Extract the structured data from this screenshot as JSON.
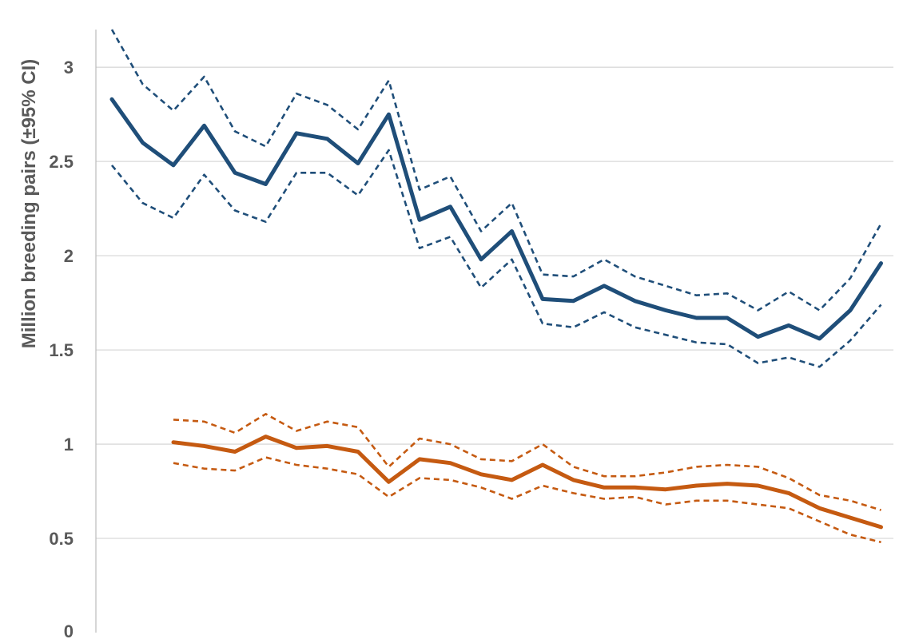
{
  "chart_data": {
    "type": "line",
    "ylabel": "Million breeding pairs (±95% CI)",
    "ylim": [
      0,
      3.2
    ],
    "yticks": [
      0,
      0.5,
      1,
      1.5,
      2,
      2.5,
      3
    ],
    "ytick_labels": [
      "0",
      "0.5",
      "1",
      "1.5",
      "2",
      "2.5",
      "3"
    ],
    "grid": true,
    "x": [
      1,
      2,
      3,
      4,
      5,
      6,
      7,
      8,
      9,
      10,
      11,
      12,
      13,
      14,
      15,
      16,
      17,
      18,
      19,
      20,
      21,
      22,
      23,
      24,
      25,
      26
    ],
    "colors": {
      "blue": "#1f4e79",
      "orange": "#c55a11"
    },
    "series": [
      {
        "color": "blue",
        "style": "solid",
        "values": [
          2.83,
          2.6,
          2.48,
          2.69,
          2.44,
          2.38,
          2.65,
          2.62,
          2.49,
          2.75,
          2.19,
          2.26,
          1.98,
          2.13,
          1.77,
          1.76,
          1.84,
          1.76,
          1.71,
          1.67,
          1.67,
          1.57,
          1.63,
          1.56,
          1.71,
          1.96
        ]
      },
      {
        "color": "blue",
        "style": "dashed",
        "values": [
          3.2,
          2.91,
          2.77,
          2.95,
          2.66,
          2.58,
          2.86,
          2.8,
          2.67,
          2.93,
          2.35,
          2.42,
          2.13,
          2.28,
          1.9,
          1.89,
          1.98,
          1.89,
          1.84,
          1.79,
          1.8,
          1.71,
          1.81,
          1.71,
          1.88,
          2.17
        ]
      },
      {
        "color": "blue",
        "style": "dashed",
        "values": [
          2.48,
          2.28,
          2.2,
          2.43,
          2.24,
          2.18,
          2.44,
          2.44,
          2.32,
          2.56,
          2.04,
          2.1,
          1.83,
          1.98,
          1.64,
          1.62,
          1.7,
          1.62,
          1.58,
          1.54,
          1.53,
          1.43,
          1.46,
          1.41,
          1.55,
          1.74
        ]
      },
      {
        "color": "orange",
        "style": "solid",
        "values": [
          null,
          null,
          1.01,
          0.99,
          0.96,
          1.04,
          0.98,
          0.99,
          0.96,
          0.8,
          0.92,
          0.9,
          0.84,
          0.81,
          0.89,
          0.81,
          0.77,
          0.77,
          0.76,
          0.78,
          0.79,
          0.78,
          0.74,
          0.66,
          0.61,
          0.56
        ]
      },
      {
        "color": "orange",
        "style": "dashed",
        "values": [
          null,
          null,
          1.13,
          1.12,
          1.06,
          1.16,
          1.07,
          1.12,
          1.09,
          0.88,
          1.03,
          1.0,
          0.92,
          0.91,
          1.0,
          0.88,
          0.83,
          0.83,
          0.85,
          0.88,
          0.89,
          0.88,
          0.82,
          0.73,
          0.7,
          0.65
        ]
      },
      {
        "color": "orange",
        "style": "dashed",
        "values": [
          null,
          null,
          0.9,
          0.87,
          0.86,
          0.93,
          0.89,
          0.87,
          0.84,
          0.72,
          0.82,
          0.81,
          0.77,
          0.71,
          0.78,
          0.74,
          0.71,
          0.72,
          0.68,
          0.7,
          0.7,
          0.68,
          0.66,
          0.59,
          0.52,
          0.48
        ]
      }
    ]
  }
}
